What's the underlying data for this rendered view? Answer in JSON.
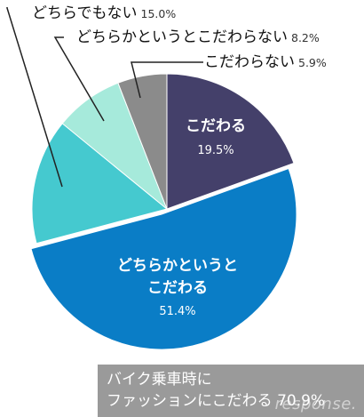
{
  "chart_data": {
    "type": "pie",
    "title": "",
    "slices": [
      {
        "label": "こだわる",
        "value": 19.5,
        "pct_label": "19.5%",
        "color": "#44406a"
      },
      {
        "label_lines": [
          "どちらかというと",
          "こだわる"
        ],
        "label": "どちらかというとこだわる",
        "value": 51.4,
        "pct_label": "51.4%",
        "color": "#0a7dc6"
      },
      {
        "label": "どちらでもない",
        "value": 15.0,
        "pct_label": "15.0%",
        "color": "#45c9cf"
      },
      {
        "label": "どちらかというとこだわらない",
        "value": 8.2,
        "pct_label": "8.2%",
        "color": "#a6eadb"
      },
      {
        "label": "こだわらない",
        "value": 5.9,
        "pct_label": "5.9%",
        "color": "#8b8b8b"
      }
    ]
  },
  "summary": {
    "line1": "バイク乗車時に",
    "line2_prefix": "ファッションにこだわる",
    "line2_value": "70.9%"
  },
  "watermark": "response."
}
